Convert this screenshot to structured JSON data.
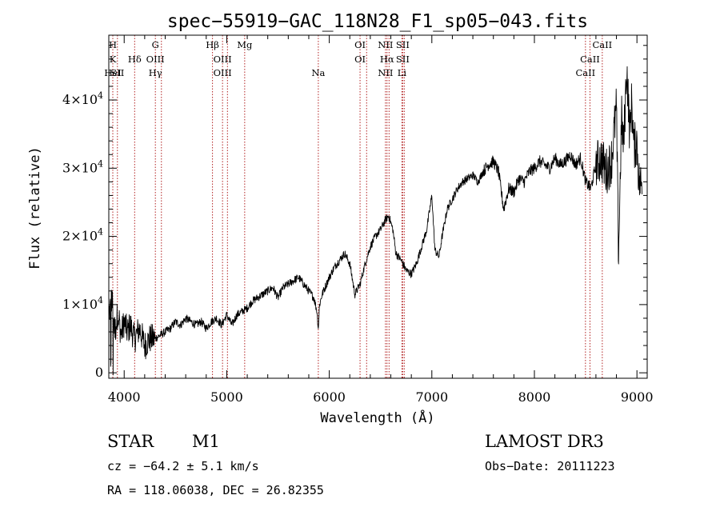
{
  "chart_data": {
    "type": "line",
    "title": "spec−55919−GAC_118N28_F1_sp05−043.fits",
    "xlabel": "Wavelength (Å)",
    "ylabel": "Flux (relative)",
    "xlim": [
      3850,
      9100
    ],
    "ylim": [
      -800,
      49500
    ],
    "x_ticks": [
      {
        "value": 4000,
        "label": "4000"
      },
      {
        "value": 5000,
        "label": "5000"
      },
      {
        "value": 6000,
        "label": "6000"
      },
      {
        "value": 7000,
        "label": "7000"
      },
      {
        "value": 8000,
        "label": "8000"
      },
      {
        "value": 9000,
        "label": "9000"
      }
    ],
    "y_ticks": [
      {
        "value": 0,
        "mant": "0",
        "exp": ""
      },
      {
        "value": 10000,
        "mant": "1×10",
        "exp": "4"
      },
      {
        "value": 20000,
        "mant": "2×10",
        "exp": "4"
      },
      {
        "value": 30000,
        "mant": "3×10",
        "exp": "4"
      },
      {
        "value": 40000,
        "mant": "4×10",
        "exp": "4"
      }
    ],
    "spectrum": {
      "x": [
        3850,
        3880,
        3910,
        3940,
        3970,
        4000,
        4030,
        4060,
        4100,
        4150,
        4200,
        4250,
        4300,
        4350,
        4400,
        4450,
        4500,
        4550,
        4600,
        4650,
        4700,
        4750,
        4800,
        4850,
        4900,
        4950,
        5000,
        5050,
        5100,
        5150,
        5200,
        5250,
        5300,
        5350,
        5400,
        5450,
        5500,
        5550,
        5600,
        5650,
        5700,
        5750,
        5800,
        5850,
        5880,
        5893,
        5905,
        5930,
        6000,
        6050,
        6100,
        6150,
        6200,
        6250,
        6300,
        6350,
        6400,
        6450,
        6500,
        6550,
        6580,
        6620,
        6650,
        6700,
        6750,
        6800,
        6850,
        6900,
        6950,
        7000,
        7030,
        7070,
        7100,
        7150,
        7200,
        7250,
        7300,
        7350,
        7400,
        7450,
        7500,
        7550,
        7600,
        7650,
        7700,
        7750,
        7800,
        7850,
        7900,
        7950,
        8000,
        8050,
        8100,
        8150,
        8200,
        8250,
        8300,
        8350,
        8400,
        8450,
        8500,
        8550,
        8600,
        8650,
        8700,
        8750,
        8800,
        8820,
        8850,
        8870,
        8900,
        8930,
        8950,
        8970,
        9000,
        9020,
        9050
      ],
      "y": [
        8500,
        11000,
        6000,
        9000,
        5500,
        7500,
        6000,
        7000,
        5000,
        6500,
        4000,
        5000,
        5000,
        5500,
        6000,
        6500,
        7500,
        7000,
        8000,
        7500,
        7000,
        7500,
        6500,
        7500,
        8000,
        7000,
        8500,
        7000,
        8500,
        9000,
        9500,
        10500,
        11000,
        11500,
        12000,
        12500,
        11000,
        12500,
        13000,
        13500,
        14000,
        13000,
        12000,
        11000,
        9000,
        6500,
        10000,
        11500,
        14000,
        15500,
        16500,
        17500,
        16000,
        11500,
        13000,
        16000,
        18500,
        20000,
        21000,
        22500,
        23000,
        21000,
        17500,
        16500,
        15000,
        14500,
        16000,
        18500,
        21000,
        26000,
        18000,
        17000,
        20000,
        24000,
        25500,
        27000,
        28000,
        28500,
        29000,
        28000,
        29500,
        30500,
        31000,
        29500,
        24000,
        27000,
        26500,
        28500,
        28000,
        29500,
        30000,
        31000,
        30500,
        30000,
        31500,
        30500,
        31000,
        32000,
        30500,
        31500,
        28000,
        27000,
        30500,
        31500,
        29500,
        31000,
        39000,
        17000,
        37500,
        33000,
        45000,
        35000,
        40000,
        33000,
        34000,
        28000,
        27500
      ]
    },
    "line_markers": [
      {
        "wavelength": 3889,
        "labels": [
          "H",
          "K",
          "HeI"
        ]
      },
      {
        "wavelength": 3934,
        "labels": [
          "",
          "",
          "SII"
        ]
      },
      {
        "wavelength": 4102,
        "labels": [
          "",
          "Hδ",
          ""
        ]
      },
      {
        "wavelength": 4304,
        "labels": [
          "G",
          "OIII",
          "Hγ"
        ]
      },
      {
        "wavelength": 4363,
        "labels": [
          "",
          "",
          ""
        ]
      },
      {
        "wavelength": 4861,
        "labels": [
          "Hβ",
          "",
          ""
        ]
      },
      {
        "wavelength": 4959,
        "labels": [
          "",
          "OIII",
          "OIII"
        ]
      },
      {
        "wavelength": 5007,
        "labels": [
          "",
          "",
          ""
        ]
      },
      {
        "wavelength": 5175,
        "labels": [
          "Mg",
          "",
          ""
        ]
      },
      {
        "wavelength": 5893,
        "labels": [
          "",
          "",
          "Na"
        ]
      },
      {
        "wavelength": 6300,
        "labels": [
          "OI",
          "OI",
          ""
        ]
      },
      {
        "wavelength": 6364,
        "labels": [
          "",
          "",
          ""
        ]
      },
      {
        "wavelength": 6548,
        "labels": [
          "NII",
          "",
          "NII"
        ]
      },
      {
        "wavelength": 6563,
        "labels": [
          "",
          "Hα",
          ""
        ]
      },
      {
        "wavelength": 6583,
        "labels": [
          "",
          "",
          ""
        ]
      },
      {
        "wavelength": 6708,
        "labels": [
          "",
          "",
          "Li"
        ]
      },
      {
        "wavelength": 6716,
        "labels": [
          "SII",
          "SII",
          ""
        ]
      },
      {
        "wavelength": 6731,
        "labels": [
          "",
          "",
          ""
        ]
      },
      {
        "wavelength": 8498,
        "labels": [
          "",
          "",
          "CaII"
        ]
      },
      {
        "wavelength": 8542,
        "labels": [
          "",
          "CaII",
          ""
        ]
      },
      {
        "wavelength": 8662,
        "labels": [
          "CaII",
          "",
          ""
        ]
      }
    ]
  },
  "info": {
    "object_class": "STAR",
    "subclass": "M1",
    "survey": "LAMOST DR3",
    "cz": "cz = −64.2 ± 5.1 km/s",
    "obs_date": "Obs−Date: 20111223",
    "radec": "RA = 118.06038, DEC =  26.82355"
  },
  "colors": {
    "marker": "#b22222",
    "spectrum": "#000000",
    "axis": "#000000"
  }
}
